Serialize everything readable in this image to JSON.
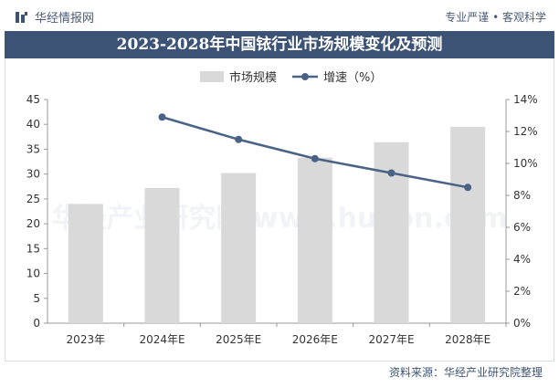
{
  "header": {
    "brand": "华经情报网",
    "slogan": "专业严谨 • 客观科学"
  },
  "chart_data": {
    "type": "bar",
    "title": "2023-2028年中国铱行业市场规模变化及预测",
    "categories": [
      "2023年",
      "2024年E",
      "2025年E",
      "2026年E",
      "2027年E",
      "2028年E"
    ],
    "series": [
      {
        "name": "市场规模",
        "type": "bar",
        "axis": "left",
        "color": "#d9d9d9",
        "values": [
          24.0,
          27.2,
          30.2,
          33.3,
          36.4,
          39.5
        ]
      },
      {
        "name": "增速（%）",
        "type": "line",
        "axis": "right",
        "color": "#4a6285",
        "values": [
          null,
          12.9,
          11.5,
          10.3,
          9.4,
          8.5
        ]
      }
    ],
    "y_left": {
      "min": 0,
      "max": 45,
      "step": 5,
      "tick_labels": [
        "0",
        "5",
        "10",
        "15",
        "20",
        "25",
        "30",
        "35",
        "40",
        "45"
      ]
    },
    "y_right": {
      "min": 0,
      "max": 14,
      "step": 2,
      "tick_labels": [
        "0%",
        "2%",
        "4%",
        "6%",
        "8%",
        "10%",
        "12%",
        "14%"
      ]
    },
    "legend_position": "top-center",
    "watermark": "华经产业研究院 www.huaon.com"
  },
  "footer": {
    "source": "资料来源：华经产业研究院整理"
  }
}
